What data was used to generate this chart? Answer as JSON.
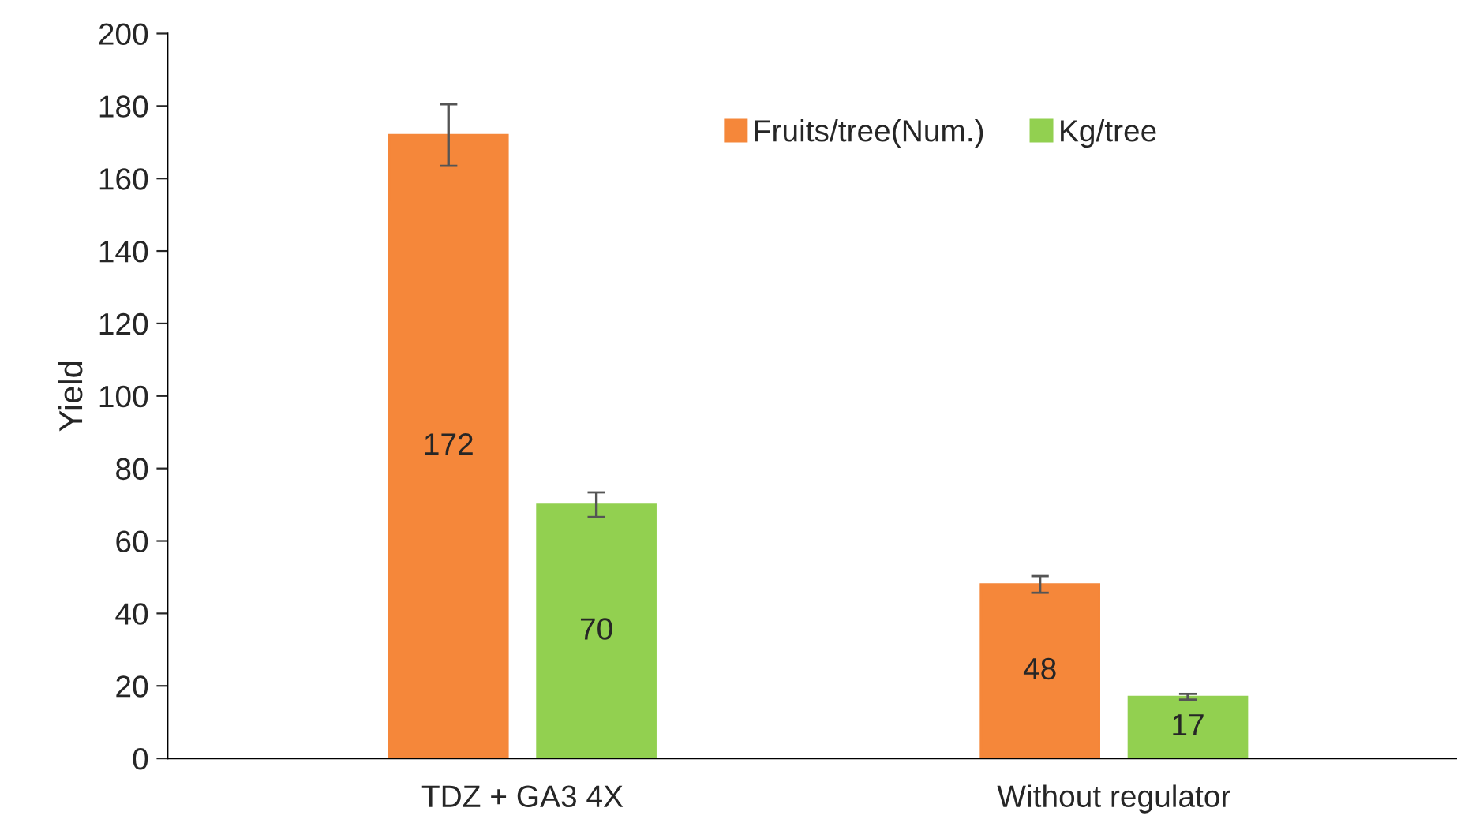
{
  "chart_data": {
    "type": "bar",
    "ylabel": "Yield",
    "categories": [
      "TDZ + GA3 4X",
      "Without regulator"
    ],
    "series": [
      {
        "name": "Fruits/tree(Num.)",
        "color": "#f5873a",
        "values": [
          172,
          48
        ],
        "errors": [
          8.5,
          2.3
        ]
      },
      {
        "name": "Kg/tree",
        "color": "#92d050",
        "values": [
          70,
          17
        ],
        "errors": [
          3.4,
          0.8
        ]
      }
    ],
    "ylim": [
      0,
      200
    ],
    "yticks": [
      0,
      20,
      40,
      60,
      80,
      100,
      120,
      140,
      160,
      180,
      200
    ],
    "data_labels": true,
    "legend": "top right",
    "grid": false
  }
}
